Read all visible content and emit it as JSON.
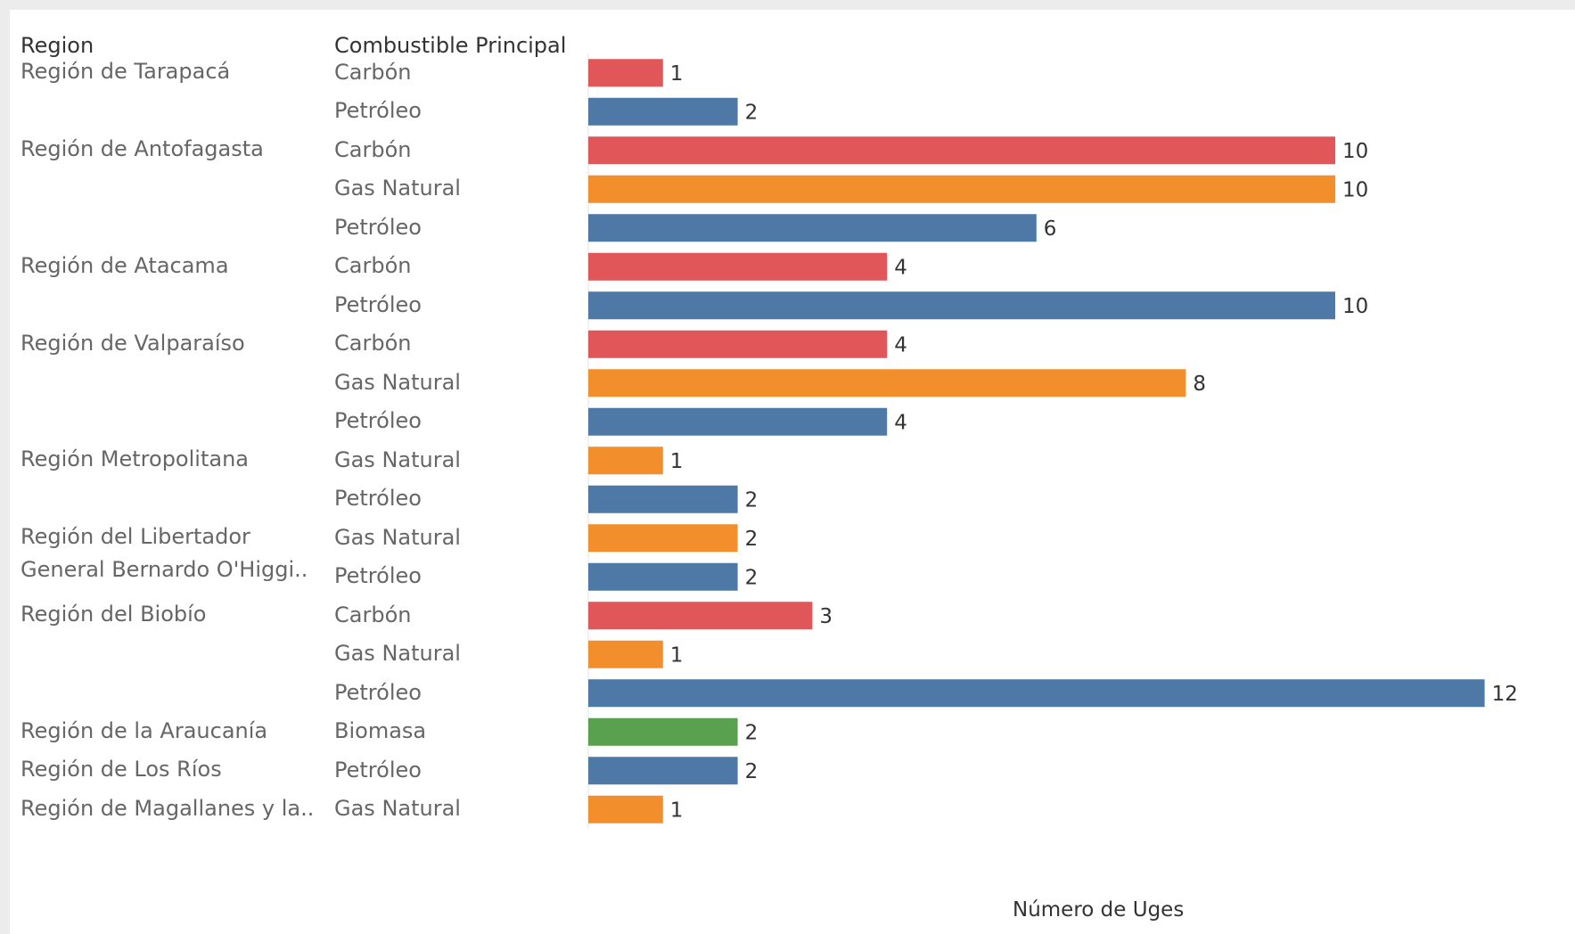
{
  "chart_data": {
    "type": "bar",
    "orientation": "horizontal",
    "xlabel": "Número de Uges",
    "row_headers": [
      "Region",
      "Combustible Principal"
    ],
    "xlim": [
      0,
      12
    ],
    "grid": false,
    "colors": {
      "Carbón": "#e15759",
      "Petróleo": "#4e79a7",
      "Gas Natural": "#f28e2b",
      "Biomasa": "#59a14f"
    },
    "region_labels": [
      "Región de Tarapacá",
      "Región de Antofagasta",
      "Región de Atacama",
      "Región de Valparaíso",
      "Región Metropolitana",
      "Región del Libertador General Bernardo O'Higgi..",
      "Región del Biobío",
      "Región de la Araucanía",
      "Región de Los Ríos",
      "Región de Magallanes y la.."
    ],
    "rows": [
      {
        "region": 0,
        "fuel": "Carbón",
        "value": 1
      },
      {
        "region": 0,
        "fuel": "Petróleo",
        "value": 2
      },
      {
        "region": 1,
        "fuel": "Carbón",
        "value": 10
      },
      {
        "region": 1,
        "fuel": "Gas Natural",
        "value": 10
      },
      {
        "region": 1,
        "fuel": "Petróleo",
        "value": 6
      },
      {
        "region": 2,
        "fuel": "Carbón",
        "value": 4
      },
      {
        "region": 2,
        "fuel": "Petróleo",
        "value": 10
      },
      {
        "region": 3,
        "fuel": "Carbón",
        "value": 4
      },
      {
        "region": 3,
        "fuel": "Gas Natural",
        "value": 8
      },
      {
        "region": 3,
        "fuel": "Petróleo",
        "value": 4
      },
      {
        "region": 4,
        "fuel": "Gas Natural",
        "value": 1
      },
      {
        "region": 4,
        "fuel": "Petróleo",
        "value": 2
      },
      {
        "region": 5,
        "fuel": "Gas Natural",
        "value": 2
      },
      {
        "region": 5,
        "fuel": "Petróleo",
        "value": 2
      },
      {
        "region": 6,
        "fuel": "Carbón",
        "value": 3
      },
      {
        "region": 6,
        "fuel": "Gas Natural",
        "value": 1
      },
      {
        "region": 6,
        "fuel": "Petróleo",
        "value": 12
      },
      {
        "region": 7,
        "fuel": "Biomasa",
        "value": 2
      },
      {
        "region": 8,
        "fuel": "Petróleo",
        "value": 2
      },
      {
        "region": 9,
        "fuel": "Gas Natural",
        "value": 1
      }
    ]
  }
}
